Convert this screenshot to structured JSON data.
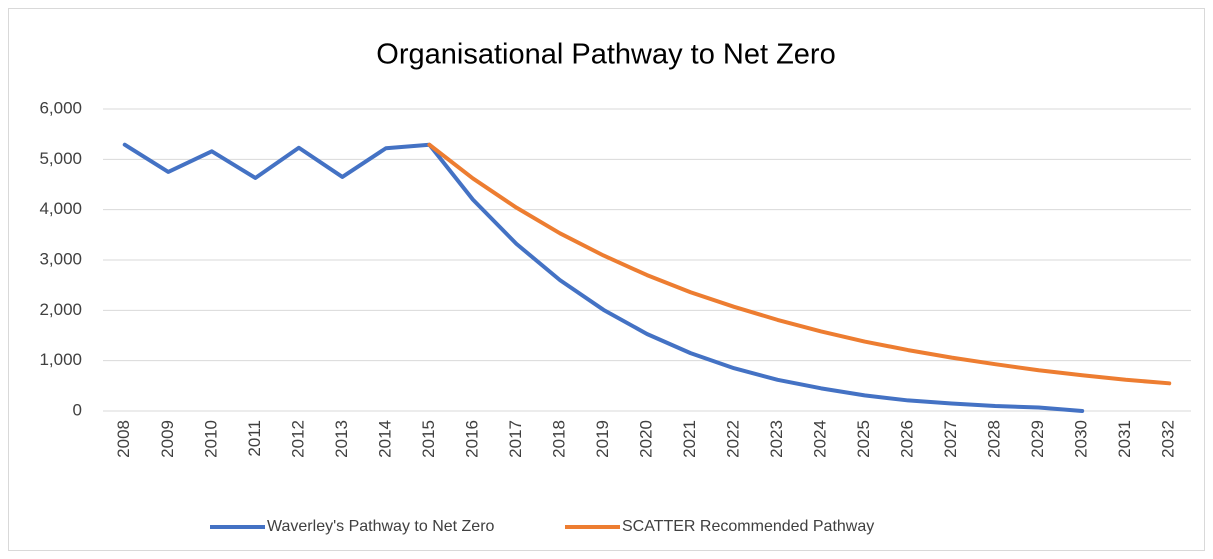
{
  "chart_data": {
    "type": "line",
    "title": "Organisational Pathway to Net Zero",
    "categories": [
      "2008",
      "2009",
      "2010",
      "2011",
      "2012",
      "2013",
      "2014",
      "2015",
      "2016",
      "2017",
      "2018",
      "2019",
      "2020",
      "2021",
      "2022",
      "2023",
      "2024",
      "2025",
      "2026",
      "2027",
      "2028",
      "2029",
      "2030",
      "2031",
      "2032"
    ],
    "series": [
      {
        "name": "Waverley's Pathway to Net Zero",
        "color": "#4472c4",
        "values": [
          5290,
          4750,
          5160,
          4630,
          5230,
          4650,
          5220,
          5290,
          4200,
          3320,
          2600,
          2010,
          1530,
          1150,
          850,
          620,
          450,
          310,
          210,
          150,
          100,
          70,
          0,
          null,
          null
        ]
      },
      {
        "name": "SCATTER Recommended Pathway",
        "color": "#ed7d31",
        "values": [
          null,
          null,
          null,
          null,
          null,
          null,
          null,
          5290,
          4620,
          4040,
          3530,
          3090,
          2700,
          2360,
          2070,
          1810,
          1580,
          1380,
          1210,
          1060,
          930,
          810,
          710,
          620,
          550
        ]
      }
    ],
    "ylim": [
      0,
      6000
    ],
    "yticks": [
      0,
      {
        "value": 1000,
        "label": "1,000"
      },
      {
        "value": 2000,
        "label": "2,000"
      },
      {
        "value": 3000,
        "label": "3,000"
      },
      {
        "value": 4000,
        "label": "4,000"
      },
      {
        "value": 5000,
        "label": "5,000"
      },
      {
        "value": 6000,
        "label": "6,000"
      }
    ],
    "grid": true,
    "legend": "bottom"
  }
}
